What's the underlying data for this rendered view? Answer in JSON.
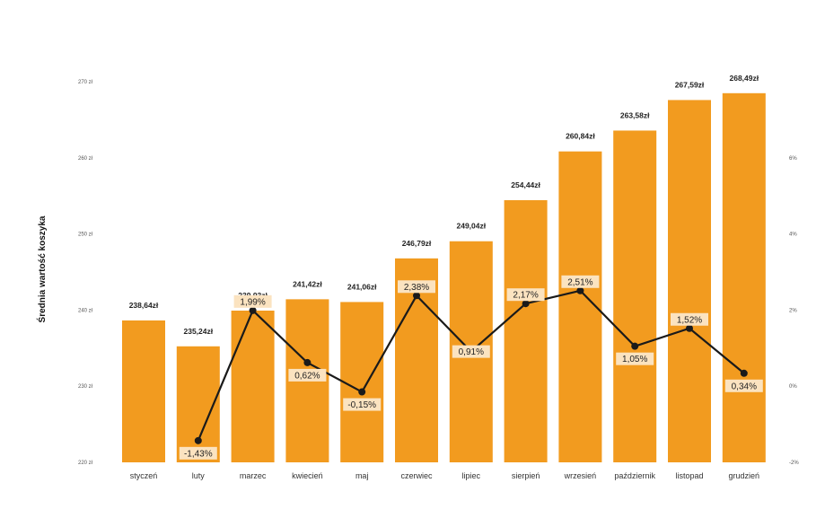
{
  "chart_data": {
    "type": "bar",
    "ylabel": "Średnia wartość koszyka",
    "categories": [
      "styczeń",
      "luty",
      "marzec",
      "kwiecień",
      "maj",
      "czerwiec",
      "lipiec",
      "sierpień",
      "wrzesień",
      "październik",
      "listopad",
      "grudzień"
    ],
    "series": [
      {
        "values": [
          238.64,
          235.24,
          239.93,
          241.42,
          241.06,
          246.79,
          249.04,
          254.44,
          260.84,
          263.58,
          267.59,
          268.49
        ],
        "labels": [
          "238,64zł",
          "235,24zł",
          "239,93zł",
          "241,42zł",
          "241,06zł",
          "246,79zł",
          "249,04zł",
          "254,44zł",
          "260,84zł",
          "263,58zł",
          "267,59zł",
          "268,49zł"
        ],
        "type": "bar",
        "axis": "left"
      },
      {
        "values": [
          null,
          -1.43,
          1.99,
          0.62,
          -0.15,
          2.38,
          0.91,
          2.17,
          2.51,
          1.05,
          1.52,
          0.34
        ],
        "labels": [
          "",
          "-1,43%",
          "1,99%",
          "0,62%",
          "-0,15%",
          "2,38%",
          "0,91%",
          "2,17%",
          "2,51%",
          "1,05%",
          "1,52%",
          "0,34%"
        ],
        "type": "line",
        "axis": "right"
      }
    ],
    "y_left": {
      "range": [
        220,
        270
      ],
      "ticks": [
        "220 zł",
        "230 zł",
        "240 zł",
        "250 zł",
        "260 zł",
        "270 zł"
      ]
    },
    "y_right": {
      "range": [
        -2,
        8
      ],
      "ticks": [
        "-2%",
        "0%",
        "2%",
        "4%",
        "6%"
      ]
    },
    "grid": false,
    "colors": {
      "bar": "#F29B1F",
      "line": "#1a1a1a",
      "label_bg": "#FBE3C0"
    }
  }
}
